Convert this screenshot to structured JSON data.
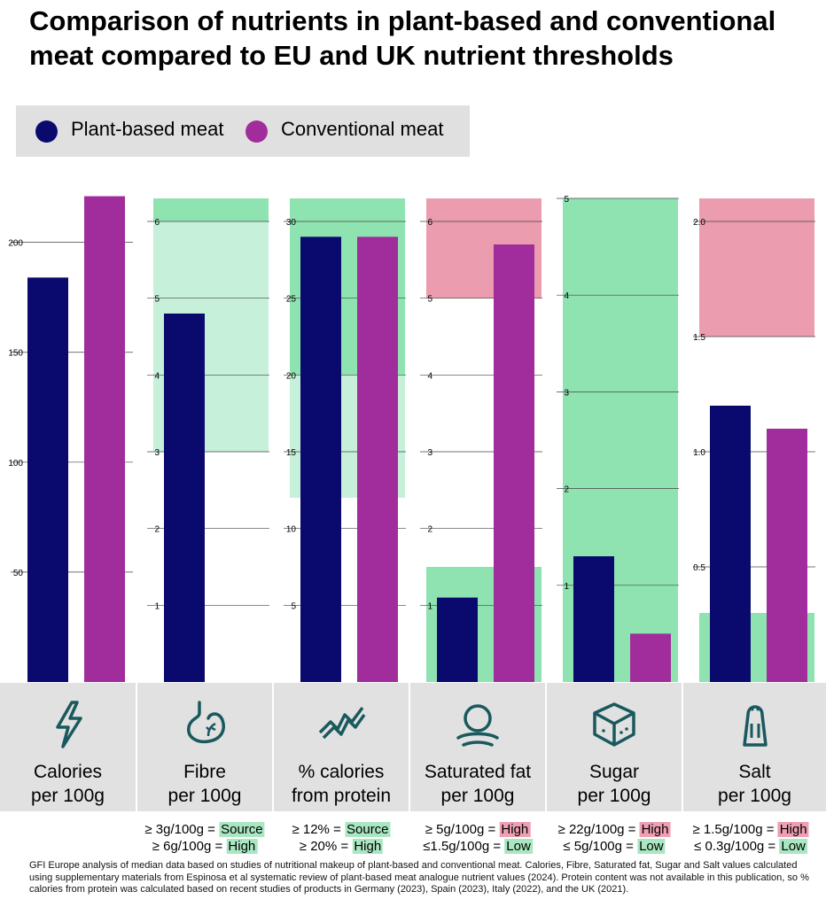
{
  "title": "Comparison of nutrients in plant-based and conventional meat compared to EU and UK nutrient thresholds",
  "legend": {
    "plant_label": "Plant-based meat",
    "conventional_label": "Conventional meat",
    "plant_color": "#0a0a6e",
    "conventional_color": "#a12d9c"
  },
  "colors": {
    "green_light": "#c6f0da",
    "green_dark": "#8fe3b1",
    "red": "#eb9cae"
  },
  "chart_data": [
    {
      "type": "bar",
      "category": "Calories per 100g",
      "ylim": [
        0,
        220
      ],
      "yticks": [
        50,
        100,
        150,
        200
      ],
      "series": [
        {
          "name": "Plant-based meat",
          "values": [
            184
          ]
        },
        {
          "name": "Conventional meat",
          "values": [
            221
          ]
        }
      ],
      "thresholds": []
    },
    {
      "type": "bar",
      "category": "Fibre per 100g",
      "ylim": [
        0,
        6.3
      ],
      "yticks": [
        1,
        2,
        3,
        4,
        5,
        6
      ],
      "series": [
        {
          "name": "Plant-based meat",
          "values": [
            4.8
          ]
        },
        {
          "name": "Conventional meat",
          "values": [
            0
          ]
        }
      ],
      "thresholds": [
        {
          "from": 3,
          "to": 6.3,
          "tone": "green_light"
        },
        {
          "from": 6,
          "to": 6.3,
          "tone": "green_dark"
        }
      ]
    },
    {
      "type": "bar",
      "category": "% calories from protein",
      "ylim": [
        0,
        31.5
      ],
      "yticks": [
        5,
        10,
        15,
        20,
        25,
        30
      ],
      "series": [
        {
          "name": "Plant-based meat",
          "values": [
            29
          ]
        },
        {
          "name": "Conventional meat",
          "values": [
            29
          ]
        }
      ],
      "thresholds": [
        {
          "from": 12,
          "to": 31.5,
          "tone": "green_light"
        },
        {
          "from": 20,
          "to": 31.5,
          "tone": "green_dark"
        }
      ]
    },
    {
      "type": "bar",
      "category": "Saturated fat per 100g",
      "ylim": [
        0,
        6.3
      ],
      "yticks": [
        1,
        2,
        3,
        4,
        5,
        6
      ],
      "series": [
        {
          "name": "Plant-based meat",
          "values": [
            1.1
          ]
        },
        {
          "name": "Conventional meat",
          "values": [
            5.7
          ]
        }
      ],
      "thresholds": [
        {
          "from": 5,
          "to": 6.3,
          "tone": "red"
        },
        {
          "from": 0,
          "to": 1.5,
          "tone": "green_dark"
        }
      ]
    },
    {
      "type": "bar",
      "category": "Sugar per 100g",
      "ylim": [
        0,
        5
      ],
      "yticks": [
        1,
        2,
        3,
        4,
        5
      ],
      "series": [
        {
          "name": "Plant-based meat",
          "values": [
            1.3
          ]
        },
        {
          "name": "Conventional meat",
          "values": [
            0.5
          ]
        }
      ],
      "thresholds": [
        {
          "from": 0,
          "to": 5,
          "tone": "green_dark"
        }
      ]
    },
    {
      "type": "bar",
      "category": "Salt per 100g",
      "ylim": [
        0,
        2.1
      ],
      "yticks": [
        0.5,
        1.0,
        1.5,
        2.0
      ],
      "series": [
        {
          "name": "Plant-based meat",
          "values": [
            1.2
          ]
        },
        {
          "name": "Conventional meat",
          "values": [
            1.1
          ]
        }
      ],
      "thresholds": [
        {
          "from": 1.5,
          "to": 2.1,
          "tone": "red"
        },
        {
          "from": 0,
          "to": 0.3,
          "tone": "green_dark"
        }
      ]
    }
  ],
  "categories": [
    {
      "icon": "lightning-icon",
      "label_line1": "Calories",
      "label_line2": "per 100g",
      "thresholds": []
    },
    {
      "icon": "stomach-icon",
      "label_line1": "Fibre",
      "label_line2": "per 100g",
      "thresholds": [
        {
          "text": "≥ 3g/100g = ",
          "tag": "Source",
          "tone": "green"
        },
        {
          "text": "≥ 6g/100g = ",
          "tag": "High",
          "tone": "green"
        }
      ]
    },
    {
      "icon": "protein-icon",
      "label_line1": "% calories",
      "label_line2": "from protein",
      "thresholds": [
        {
          "text": "≥ 12% = ",
          "tag": "Source",
          "tone": "green"
        },
        {
          "text": "≥ 20% = ",
          "tag": "High",
          "tone": "green"
        }
      ]
    },
    {
      "icon": "fat-icon",
      "label_line1": "Saturated fat",
      "label_line2": "per 100g",
      "thresholds": [
        {
          "text": "≥ 5g/100g = ",
          "tag": "High",
          "tone": "red"
        },
        {
          "text": "≤1.5g/100g = ",
          "tag": "Low",
          "tone": "green"
        }
      ]
    },
    {
      "icon": "sugar-cube-icon",
      "label_line1": "Sugar",
      "label_line2": "per 100g",
      "thresholds": [
        {
          "text": "≥ 22g/100g = ",
          "tag": "High",
          "tone": "red"
        },
        {
          "text": "≤ 5g/100g = ",
          "tag": "Low",
          "tone": "green"
        }
      ]
    },
    {
      "icon": "salt-shaker-icon",
      "label_line1": "Salt",
      "label_line2": "per 100g",
      "thresholds": [
        {
          "text": "≥ 1.5g/100g = ",
          "tag": "High",
          "tone": "red"
        },
        {
          "text": "≤ 0.3g/100g = ",
          "tag": "Low",
          "tone": "green"
        }
      ]
    }
  ],
  "footnote": "GFI Europe analysis of median data based on studies of nutritional makeup of plant-based and conventional meat. Calories, Fibre, Saturated fat, Sugar and Salt values calculated using supplementary materials from Espinosa et al systematic review of plant-based meat analogue nutrient values (2024). Protein content was not available in this publication, so % calories from protein was calculated based on recent studies of products in Germany (2023), Spain (2023), Italy (2022), and the UK (2021)."
}
